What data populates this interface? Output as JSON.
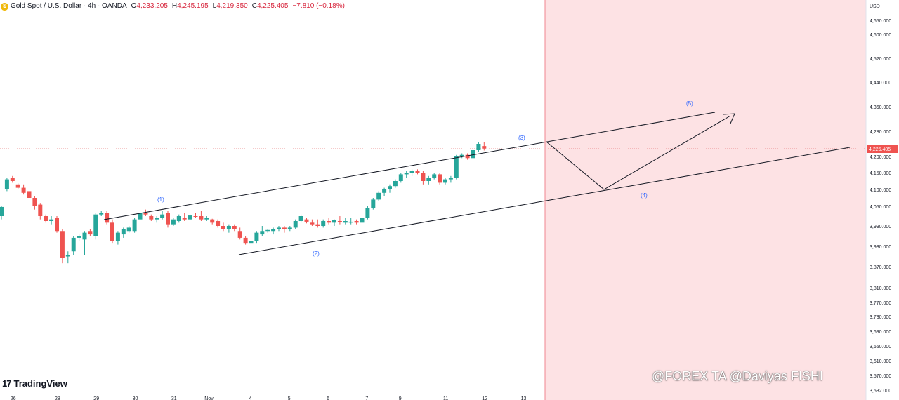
{
  "header": {
    "symbol": "Gold Spot / U.S. Dollar · 4h · OANDA",
    "open_label": "O",
    "open": "4,233.205",
    "high_label": "H",
    "high": "4,245.195",
    "low_label": "L",
    "low": "4,219.350",
    "close_label": "C",
    "close": "4,225.405",
    "change": "−7.810 (−0.18%)"
  },
  "brand": {
    "name": "TradingView"
  },
  "watermark": "@FOREX TA @Daviyas FISHI",
  "chart_data": {
    "type": "candlestick",
    "currency": "USD",
    "last_price": "4,225.405",
    "y_ticks": [
      "4,650.000",
      "4,600.000",
      "4,520.000",
      "4,440.000",
      "4,360.000",
      "4,280.000",
      "4,200.000",
      "4,150.000",
      "4,100.000",
      "4,050.000",
      "3,990.000",
      "3,930.000",
      "3,870.000",
      "3,810.000",
      "3,770.000",
      "3,730.000",
      "3,690.000",
      "3,650.000",
      "3,610.000",
      "3,570.000",
      "3,532.000"
    ],
    "y_tick_values": [
      4650,
      4600,
      4520,
      4440,
      4360,
      4280,
      4200,
      4150,
      4100,
      4050,
      3990,
      3930,
      3870,
      3810,
      3770,
      3730,
      3690,
      3650,
      3610,
      3570,
      3532
    ],
    "x_ticks": [
      "26",
      "28",
      "29",
      "30",
      "31",
      "Nov",
      "4",
      "5",
      "6",
      "7",
      "9",
      "11",
      "12",
      "13"
    ],
    "x_tick_index": [
      2,
      10,
      17,
      24,
      31,
      37,
      45,
      52,
      59,
      66,
      72,
      80,
      87,
      94
    ],
    "ohlc": [
      [
        4020,
        4052,
        4010,
        4048
      ],
      [
        4100,
        4135,
        4095,
        4130
      ],
      [
        4135,
        4140,
        4120,
        4125
      ],
      [
        4115,
        4118,
        4100,
        4105
      ],
      [
        4105,
        4115,
        4085,
        4090
      ],
      [
        4095,
        4100,
        4070,
        4075
      ],
      [
        4075,
        4080,
        4040,
        4050
      ],
      [
        4055,
        4060,
        4010,
        4020
      ],
      [
        4020,
        4025,
        4000,
        4005
      ],
      [
        4005,
        4020,
        3995,
        4010
      ],
      [
        4015,
        4020,
        3970,
        3975
      ],
      [
        3975,
        3980,
        3880,
        3895
      ],
      [
        3900,
        3915,
        3880,
        3905
      ],
      [
        3915,
        3960,
        3905,
        3955
      ],
      [
        3955,
        3965,
        3945,
        3960
      ],
      [
        3950,
        3975,
        3905,
        3970
      ],
      [
        3975,
        3980,
        3960,
        3965
      ],
      [
        3960,
        4030,
        3950,
        4025
      ],
      [
        4025,
        4035,
        4020,
        4030
      ],
      [
        4030,
        4035,
        3995,
        4000
      ],
      [
        4000,
        4010,
        3940,
        3945
      ],
      [
        3945,
        3975,
        3935,
        3970
      ],
      [
        3965,
        3985,
        3955,
        3980
      ],
      [
        3975,
        3990,
        3970,
        3985
      ],
      [
        3975,
        4015,
        3970,
        4010
      ],
      [
        4010,
        4035,
        4005,
        4030
      ],
      [
        4030,
        4040,
        4020,
        4025
      ],
      [
        4020,
        4025,
        4005,
        4010
      ],
      [
        4010,
        4020,
        4000,
        4015
      ],
      [
        4015,
        4035,
        4010,
        4025
      ],
      [
        4030,
        4035,
        3985,
        3995
      ],
      [
        3995,
        4015,
        3990,
        4010
      ],
      [
        4005,
        4025,
        4000,
        4020
      ],
      [
        4015,
        4030,
        4005,
        4010
      ],
      [
        4010,
        4025,
        4008,
        4022
      ],
      [
        4020,
        4030,
        4015,
        4018
      ],
      [
        4020,
        4035,
        4005,
        4010
      ],
      [
        4010,
        4020,
        4005,
        4015
      ],
      [
        4010,
        4012,
        3995,
        4000
      ],
      [
        4005,
        4010,
        3985,
        3990
      ],
      [
        3990,
        4000,
        3975,
        3980
      ],
      [
        3980,
        3995,
        3970,
        3990
      ],
      [
        3990,
        3995,
        3975,
        3980
      ],
      [
        3975,
        3985,
        3950,
        3955
      ],
      [
        3955,
        3960,
        3935,
        3940
      ],
      [
        3940,
        3955,
        3935,
        3945
      ],
      [
        3945,
        3975,
        3940,
        3970
      ],
      [
        3965,
        3990,
        3960,
        3975
      ],
      [
        3975,
        3980,
        3970,
        3978
      ],
      [
        3975,
        3985,
        3965,
        3980
      ],
      [
        3980,
        3990,
        3975,
        3985
      ],
      [
        3985,
        3990,
        3970,
        3980
      ],
      [
        3980,
        3990,
        3975,
        3985
      ],
      [
        3985,
        4010,
        3980,
        4005
      ],
      [
        4005,
        4025,
        4000,
        4020
      ],
      [
        4010,
        4015,
        3998,
        4003
      ],
      [
        4000,
        4010,
        3990,
        3995
      ],
      [
        3995,
        4010,
        3985,
        3990
      ],
      [
        3990,
        4010,
        3985,
        4005
      ],
      [
        4005,
        4015,
        3995,
        4000
      ],
      [
        4000,
        4010,
        3990,
        4008
      ],
      [
        4005,
        4020,
        3995,
        4002
      ],
      [
        4000,
        4015,
        3995,
        4005
      ],
      [
        4000,
        4015,
        3995,
        4003
      ],
      [
        4005,
        4010,
        3995,
        4000
      ],
      [
        4000,
        4020,
        3995,
        4015
      ],
      [
        4015,
        4050,
        4010,
        4045
      ],
      [
        4045,
        4075,
        4040,
        4070
      ],
      [
        4070,
        4095,
        4065,
        4090
      ],
      [
        4090,
        4105,
        4080,
        4100
      ],
      [
        4100,
        4115,
        4090,
        4110
      ],
      [
        4110,
        4130,
        4105,
        4125
      ],
      [
        4125,
        4150,
        4120,
        4145
      ],
      [
        4145,
        4155,
        4135,
        4150
      ],
      [
        4150,
        4160,
        4140,
        4155
      ],
      [
        4155,
        4160,
        4145,
        4150
      ],
      [
        4150,
        4155,
        4115,
        4125
      ],
      [
        4125,
        4140,
        4115,
        4135
      ],
      [
        4135,
        4150,
        4130,
        4145
      ],
      [
        4145,
        4150,
        4115,
        4120
      ],
      [
        4120,
        4135,
        4115,
        4130
      ],
      [
        4130,
        4140,
        4120,
        4135
      ],
      [
        4135,
        4205,
        4130,
        4200
      ],
      [
        4200,
        4210,
        4195,
        4205
      ],
      [
        4205,
        4210,
        4190,
        4195
      ],
      [
        4195,
        4225,
        4190,
        4220
      ],
      [
        4220,
        4245,
        4215,
        4240
      ],
      [
        4233,
        4245,
        4219,
        4225
      ]
    ],
    "wave_labels": [
      "(1)",
      "(2)",
      "(3)",
      "(4)",
      "(5)"
    ],
    "prediction_zone_color": "#fde2e4",
    "up_color": "#26a69a",
    "down_color": "#ef5350"
  }
}
